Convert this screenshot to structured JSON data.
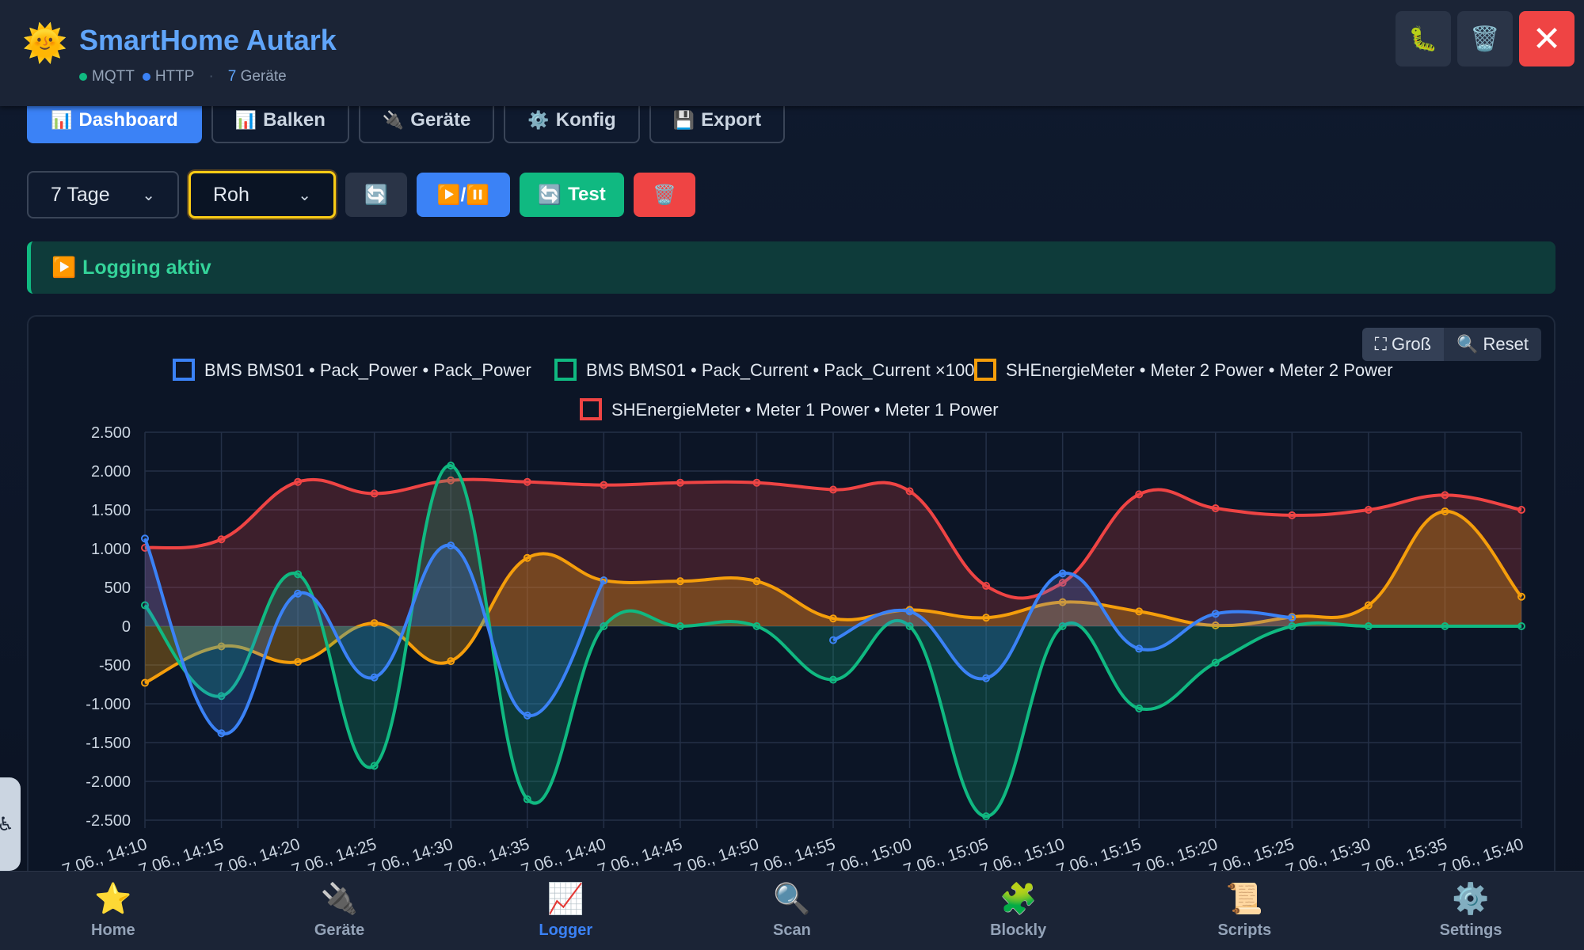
{
  "header": {
    "title": "SmartHome Autark",
    "badges": [
      {
        "label": "MQTT",
        "color": "#10b981"
      },
      {
        "label": "HTTP",
        "color": "#3b82f6"
      }
    ],
    "device_count": "7",
    "device_label": "Geräte",
    "icons": [
      "bug-icon",
      "trash-icon",
      "close-icon"
    ]
  },
  "tabs": [
    {
      "label": "Dashboard",
      "icon": "📊",
      "active": true
    },
    {
      "label": "Balken",
      "icon": "📊",
      "active": false
    },
    {
      "label": "Geräte",
      "icon": "🔌",
      "active": false
    },
    {
      "label": "Konfig",
      "icon": "⚙️",
      "active": false
    },
    {
      "label": "Export",
      "icon": "💾",
      "active": false
    }
  ],
  "controls": {
    "range_value": "7 Tage",
    "mode_value": "Roh",
    "refresh_icon": "🔄",
    "playpause_icon": "▶️/⏸️",
    "test_label": "Test",
    "test_icon": "🔄",
    "delete_icon": "🗑️"
  },
  "status": {
    "icon": "▶️",
    "text": "Logging aktiv"
  },
  "chart_buttons": {
    "big": "Groß",
    "big_icon": "⛶",
    "reset": "Reset",
    "reset_icon": "🔍"
  },
  "chart_data": {
    "type": "line",
    "x": [
      "7.06., 14:10",
      "7.06., 14:15",
      "7.06., 14:20",
      "7.06., 14:25",
      "7.06., 14:30",
      "7.06., 14:35",
      "7.06., 14:40",
      "7.06., 14:45",
      "7.06., 14:50",
      "7.06., 14:55",
      "7.06., 15:00",
      "7.06., 15:05",
      "7.06., 15:10",
      "7.06., 15:15",
      "7.06., 15:20",
      "7.06., 15:25",
      "7.06., 15:30",
      "7.06., 15:35",
      "7.06., 15:40"
    ],
    "x_tick_labels": [
      "7.06., 14:10",
      "7.06., 14:15",
      "7.06., 14:20",
      "7.06., 14:25",
      "7.06., 14:30",
      "7.06., 14:35",
      "7.06., 14:40",
      "7.06., 14:45",
      "7.06., 14:50",
      "7.06., 14:55",
      "7.06., 15:00",
      "7.06., 15:05",
      "7.06., 15:10",
      "7.06., 15:15",
      "7.06., 15:20",
      "7.06., 15:25",
      "7.06., 15:30",
      "7.06., 15:35",
      "7.06., 15:40"
    ],
    "ylim": [
      -2500,
      2500
    ],
    "y_ticks": [
      2500,
      2000,
      1500,
      1000,
      500,
      0,
      -500,
      -1000,
      -1500,
      -2000,
      -2500
    ],
    "y_tick_labels": [
      "2.500",
      "2.000",
      "1.500",
      "1.000",
      "500",
      "0",
      "-500",
      "-1.000",
      "-1.500",
      "-2.000",
      "-2.500"
    ],
    "grid": true,
    "legend": "top-center",
    "fill": true,
    "series": [
      {
        "name": "BMS BMS01 • Pack_Power • Pack_Power",
        "color": "#3b82f6",
        "values": [
          1130,
          -1380,
          420,
          -660,
          1040,
          -1150,
          590,
          null,
          null,
          -180,
          190,
          -670,
          680,
          -290,
          160,
          110,
          null,
          null,
          null
        ]
      },
      {
        "name": "BMS BMS01 • Pack_Current • Pack_Current ×100",
        "color": "#10b981",
        "values": [
          270,
          -900,
          670,
          -1800,
          2070,
          -2230,
          0,
          0,
          0,
          -690,
          0,
          -2450,
          0,
          -1060,
          -470,
          0,
          0,
          0,
          0
        ]
      },
      {
        "name": "SHEnergieMeter • Meter 2 Power • Meter 2 Power",
        "color": "#f59e0b",
        "values": [
          -730,
          -260,
          -460,
          40,
          -450,
          880,
          590,
          580,
          580,
          100,
          210,
          110,
          310,
          190,
          10,
          120,
          270,
          1480,
          380
        ]
      },
      {
        "name": "SHEnergieMeter • Meter 1 Power • Meter 1 Power",
        "color": "#ef4444",
        "values": [
          1010,
          1120,
          1860,
          1710,
          1880,
          1860,
          1820,
          1850,
          1850,
          1760,
          1740,
          520,
          560,
          1700,
          1520,
          1430,
          1500,
          1690,
          1500
        ]
      }
    ]
  },
  "bottom_nav": [
    {
      "label": "Home",
      "icon": "⭐",
      "active": false
    },
    {
      "label": "Geräte",
      "icon": "🔌",
      "active": false
    },
    {
      "label": "Logger",
      "icon": "📈",
      "active": true
    },
    {
      "label": "Scan",
      "icon": "🔍",
      "active": false
    },
    {
      "label": "Blockly",
      "icon": "🧩",
      "active": false
    },
    {
      "label": "Scripts",
      "icon": "📜",
      "active": false
    },
    {
      "label": "Settings",
      "icon": "⚙️",
      "active": false
    }
  ],
  "a11y_icon": "accessibility-icon"
}
